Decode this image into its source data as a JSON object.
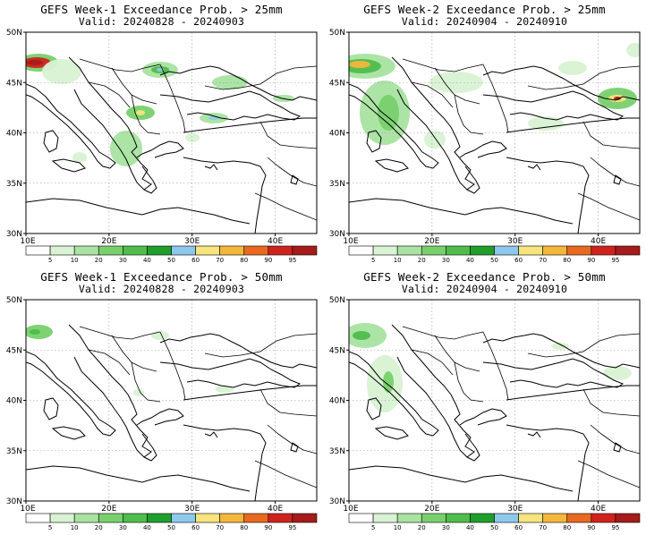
{
  "panels": [
    {
      "title": "GEFS Week-1 Exceedance Prob. > 25mm",
      "valid": "Valid: 20240828 - 20240903"
    },
    {
      "title": "GEFS Week-2 Exceedance Prob. > 25mm",
      "valid": "Valid: 20240904 - 20240910"
    },
    {
      "title": "GEFS Week-1 Exceedance Prob. > 50mm",
      "valid": "Valid: 20240828 - 20240903"
    },
    {
      "title": "GEFS Week-2 Exceedance Prob. > 50mm",
      "valid": "Valid: 20240904 - 20240910"
    }
  ],
  "lat_labels": [
    "50N",
    "45N",
    "40N",
    "35N",
    "30N"
  ],
  "lon_labels": [
    "10E",
    "20E",
    "30E",
    "40E"
  ],
  "colorbar": {
    "labels": [
      "5",
      "10",
      "20",
      "30",
      "40",
      "50",
      "60",
      "70",
      "80",
      "90",
      "95"
    ],
    "colors": [
      "#ffffff",
      "#d8f2d3",
      "#a8e3a1",
      "#78d06d",
      "#4fbd4b",
      "#1f9e2c",
      "#8ec8ec",
      "#f6e47c",
      "#f4b63b",
      "#e8691f",
      "#d0221c",
      "#a61b1b"
    ]
  }
}
